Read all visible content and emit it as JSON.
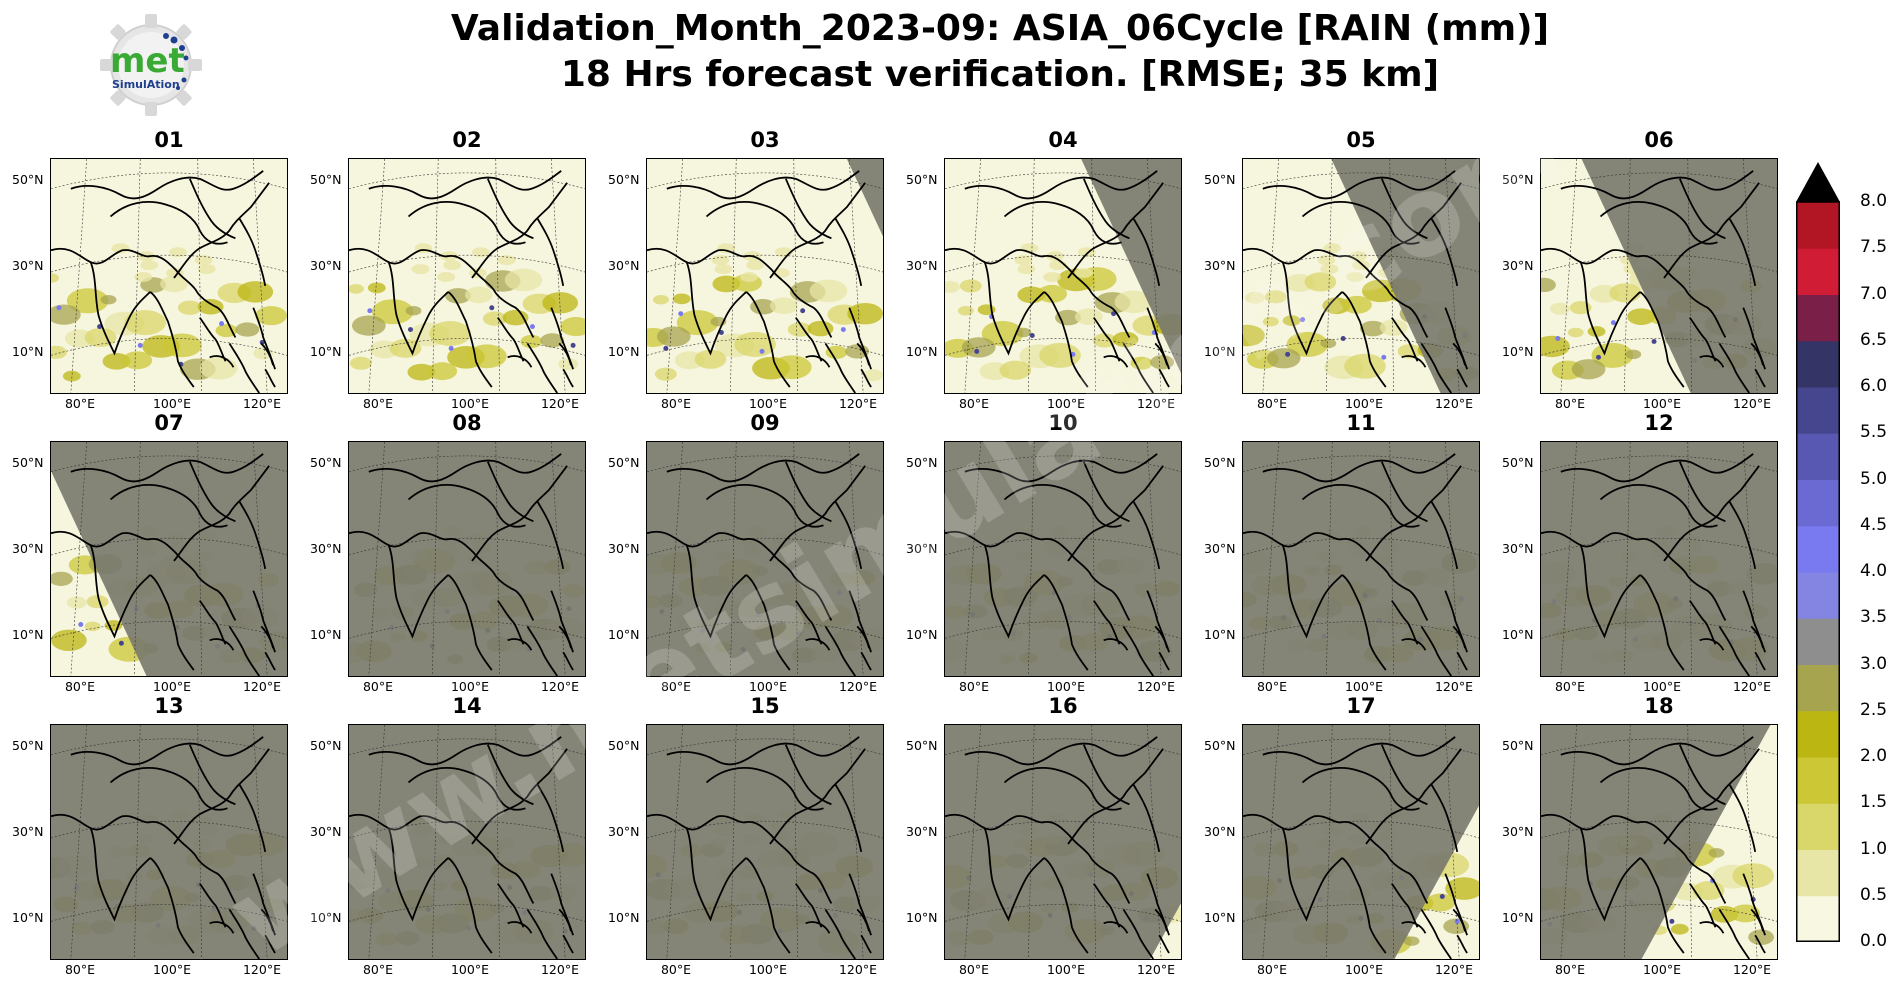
{
  "title": {
    "line1": "Validation_Month_2023-09: ASIA_06Cycle [RAIN (mm)]",
    "line2": "18 Hrs forecast verification.  [RMSE; 35 km]"
  },
  "logo": {
    "text_main": "met",
    "text_sub": "SimulAtion",
    "icon": "gear-logo-icon",
    "color_main": "#3aaa35",
    "color_sub": "#1f3f8f"
  },
  "watermark": {
    "text": "www.metsimulation.com"
  },
  "map": {
    "lat_labels": [
      "50°N",
      "30°N",
      "10°N"
    ],
    "lon_labels": [
      "80°E",
      "100°E",
      "120°E"
    ],
    "masked_color": "#7a7a6e",
    "land_color": "#f6f5dd"
  },
  "panels": [
    {
      "label": "01",
      "night_fraction": 0.05,
      "night_side": "east"
    },
    {
      "label": "02",
      "night_fraction": 0.15,
      "night_side": "east"
    },
    {
      "label": "03",
      "night_fraction": 0.3,
      "night_side": "east"
    },
    {
      "label": "04",
      "night_fraction": 0.5,
      "night_side": "east"
    },
    {
      "label": "05",
      "night_fraction": 0.65,
      "night_side": "east"
    },
    {
      "label": "06",
      "night_fraction": 0.8,
      "night_side": "east"
    },
    {
      "label": "07",
      "night_fraction": 0.97,
      "night_side": "east"
    },
    {
      "label": "08",
      "night_fraction": 1.0,
      "night_side": "east"
    },
    {
      "label": "09",
      "night_fraction": 1.0,
      "night_side": "east"
    },
    {
      "label": "10",
      "night_fraction": 1.0,
      "night_side": "east"
    },
    {
      "label": "11",
      "night_fraction": 1.0,
      "night_side": "east"
    },
    {
      "label": "12",
      "night_fraction": 1.0,
      "night_side": "east"
    },
    {
      "label": "13",
      "night_fraction": 1.0,
      "night_side": "east"
    },
    {
      "label": "14",
      "night_fraction": 1.0,
      "night_side": "east"
    },
    {
      "label": "15",
      "night_fraction": 1.0,
      "night_side": "east"
    },
    {
      "label": "16",
      "night_fraction": 0.97,
      "night_side": "west"
    },
    {
      "label": "17",
      "night_fraction": 0.78,
      "night_side": "west"
    },
    {
      "label": "18",
      "night_fraction": 0.6,
      "night_side": "west"
    }
  ],
  "colorbar": {
    "ticks": [
      "0.0",
      "0.5",
      "1.0",
      "1.5",
      "2.0",
      "2.5",
      "3.0",
      "3.5",
      "4.0",
      "4.5",
      "5.0",
      "5.5",
      "6.0",
      "6.5",
      "7.0",
      "7.5",
      "8.0"
    ],
    "colors": [
      "#f8f7e2",
      "#e8e6a6",
      "#d9d66a",
      "#cbc735",
      "#bcb612",
      "#a7a450",
      "#8e8e8e",
      "#8484e2",
      "#7a7af0",
      "#6a6ad2",
      "#5858b2",
      "#46468e",
      "#343466",
      "#7a2048",
      "#d01c35",
      "#b21625",
      "#7a0e10"
    ],
    "extend_color": "#000000"
  }
}
